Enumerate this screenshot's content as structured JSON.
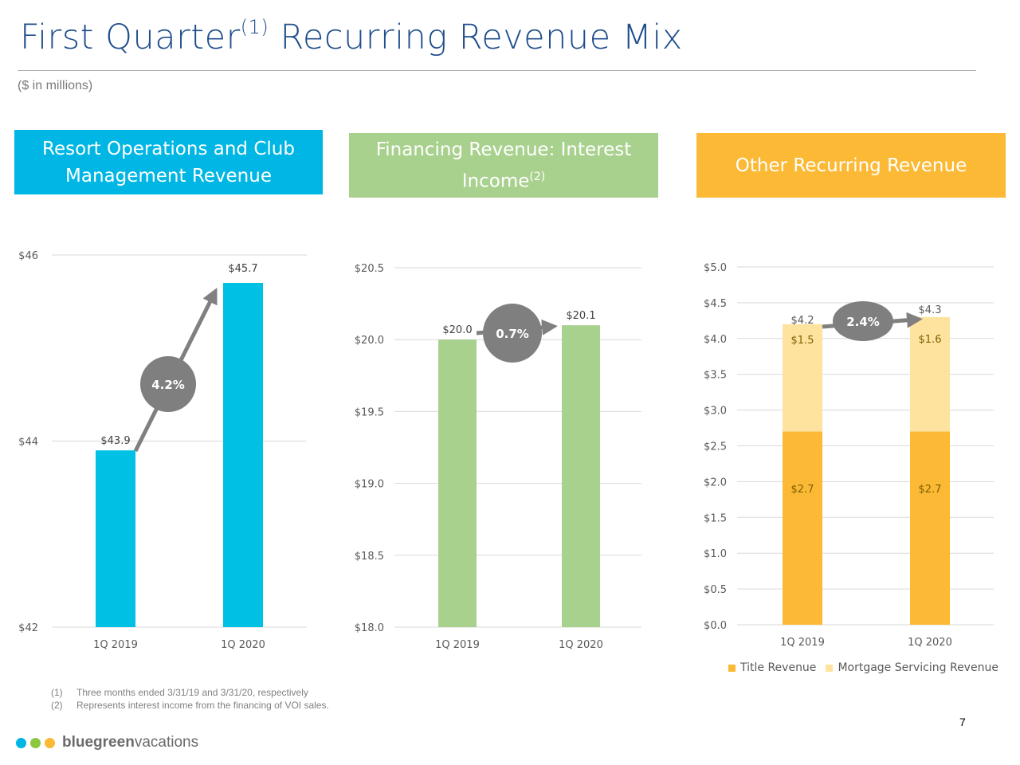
{
  "header": {
    "title_a": "First Quarter",
    "title_sup": "(1)",
    "title_b": " Recurring Revenue Mix",
    "subtitle": "($ in millions)"
  },
  "panels": [
    {
      "title": "Resort Operations and Club Management Revenue",
      "sup": "",
      "color": "#00b6e4"
    },
    {
      "title": "Financing Revenue:  Interest Income",
      "sup": "(2)",
      "color": "#a9d18e"
    },
    {
      "title": "Other Recurring Revenue",
      "sup": "",
      "color": "#fbb936"
    }
  ],
  "chart_data": [
    {
      "type": "bar",
      "categories": [
        "1Q 2019",
        "1Q 2020"
      ],
      "values": [
        43.9,
        45.7
      ],
      "data_labels": [
        "$43.9",
        "$45.7"
      ],
      "ylim": [
        42,
        46
      ],
      "yticks": [
        "$42",
        "$44",
        "$46"
      ],
      "ytick_values": [
        42,
        44,
        46
      ],
      "grid": true,
      "annotation": "4.2%",
      "color": "#00c0e4"
    },
    {
      "type": "bar",
      "categories": [
        "1Q 2019",
        "1Q 2020"
      ],
      "values": [
        20.0,
        20.1
      ],
      "data_labels": [
        "$20.0",
        "$20.1"
      ],
      "ylim": [
        18.0,
        20.5
      ],
      "yticks": [
        "$18.0",
        "$18.5",
        "$19.0",
        "$19.5",
        "$20.0",
        "$20.5"
      ],
      "ytick_values": [
        18.0,
        18.5,
        19.0,
        19.5,
        20.0,
        20.5
      ],
      "grid": true,
      "annotation": "0.7%",
      "color": "#a9d18e"
    },
    {
      "type": "bar",
      "stacked": true,
      "categories": [
        "1Q 2019",
        "1Q 2020"
      ],
      "series": [
        {
          "name": "Title Revenue",
          "values": [
            2.7,
            2.7
          ],
          "labels": [
            "$2.7",
            "$2.7"
          ],
          "color": "#fbb936"
        },
        {
          "name": "Mortgage Servicing Revenue",
          "values": [
            1.5,
            1.6
          ],
          "labels": [
            "$1.5",
            "$1.6"
          ],
          "color": "#fee39f"
        }
      ],
      "totals": [
        4.2,
        4.3
      ],
      "total_labels": [
        "$4.2",
        "$4.3"
      ],
      "ylim": [
        0,
        5
      ],
      "yticks": [
        "$0.0",
        "$0.5",
        "$1.0",
        "$1.5",
        "$2.0",
        "$2.5",
        "$3.0",
        "$3.5",
        "$4.0",
        "$4.5",
        "$5.0"
      ],
      "ytick_values": [
        0,
        0.5,
        1,
        1.5,
        2,
        2.5,
        3,
        3.5,
        4,
        4.5,
        5
      ],
      "grid": true,
      "legend": "bottom-right",
      "annotation": "2.4%"
    }
  ],
  "footnotes": [
    {
      "num": "(1)",
      "text": "Three months ended 3/31/19 and 3/31/20, respectively"
    },
    {
      "num": "(2)",
      "text": "Represents interest income from the financing of VOI sales."
    }
  ],
  "page_number": "7",
  "logo": {
    "text_bold": "bluegreen",
    "text_light": "vacations",
    "dots": [
      "#00b6e4",
      "#8dc63f",
      "#fbb936"
    ]
  }
}
